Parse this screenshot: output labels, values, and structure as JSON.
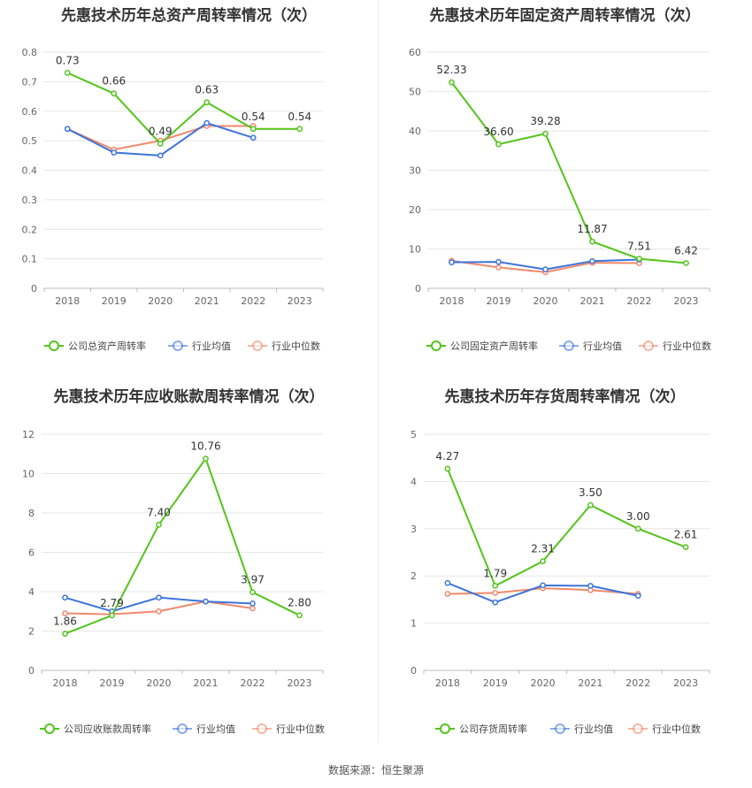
{
  "source_label": "数据来源：恒生聚源",
  "colors": {
    "company": "#52c41a",
    "avg": "#3d74db",
    "median": "#f0896b",
    "grid": "#e6e6e6",
    "axis_text": "#666666"
  },
  "chart_data": [
    {
      "type": "line",
      "title": "先惠技术历年总资产周转率情况（次）",
      "x": [
        "2018",
        "2019",
        "2020",
        "2021",
        "2022",
        "2023"
      ],
      "ylim": [
        0,
        0.8
      ],
      "yticks": [
        "0",
        "0.1",
        "0.2",
        "0.3",
        "0.4",
        "0.5",
        "0.6",
        "0.7",
        "0.8"
      ],
      "series": [
        {
          "name": "公司总资产周转率",
          "values": [
            0.73,
            0.66,
            0.49,
            0.63,
            0.54,
            0.54
          ],
          "labels": [
            "0.73",
            "0.66",
            "0.49",
            "0.63",
            "0.54",
            "0.54"
          ]
        },
        {
          "name": "行业均值",
          "values": [
            0.54,
            0.46,
            0.45,
            0.56,
            0.51,
            null
          ]
        },
        {
          "name": "行业中位数",
          "values": [
            0.54,
            0.47,
            0.5,
            0.55,
            0.55,
            null
          ]
        }
      ]
    },
    {
      "type": "line",
      "title": "先惠技术历年固定资产周转率情况（次）",
      "x": [
        "2018",
        "2019",
        "2020",
        "2021",
        "2022",
        "2023"
      ],
      "ylim": [
        0,
        60
      ],
      "yticks": [
        "0",
        "10",
        "20",
        "30",
        "40",
        "50",
        "60"
      ],
      "series": [
        {
          "name": "公司固定资产周转率",
          "values": [
            52.33,
            36.6,
            39.28,
            11.87,
            7.51,
            6.42
          ],
          "labels": [
            "52.33",
            "36.60",
            "39.28",
            "11.87",
            "7.51",
            "6.42"
          ]
        },
        {
          "name": "行业均值",
          "values": [
            6.6,
            6.7,
            4.8,
            6.9,
            7.3,
            null
          ]
        },
        {
          "name": "行业中位数",
          "values": [
            7.0,
            5.3,
            4.1,
            6.5,
            6.4,
            null
          ]
        }
      ]
    },
    {
      "type": "line",
      "title": "先惠技术历年应收账款周转率情况（次）",
      "x": [
        "2018",
        "2019",
        "2020",
        "2021",
        "2022",
        "2023"
      ],
      "ylim": [
        0,
        12
      ],
      "yticks": [
        "0",
        "2",
        "4",
        "6",
        "8",
        "10",
        "12"
      ],
      "series": [
        {
          "name": "公司应收账款周转率",
          "values": [
            1.86,
            2.79,
            7.4,
            10.76,
            3.97,
            2.8
          ],
          "labels": [
            "1.86",
            "2.79",
            "7.40",
            "10.76",
            "3.97",
            "2.80"
          ]
        },
        {
          "name": "行业均值",
          "values": [
            3.7,
            3.0,
            3.7,
            3.5,
            3.4,
            null
          ]
        },
        {
          "name": "行业中位数",
          "values": [
            2.9,
            2.85,
            3.0,
            3.5,
            3.15,
            null
          ]
        }
      ]
    },
    {
      "type": "line",
      "title": "先惠技术历年存货周转率情况（次）",
      "x": [
        "2018",
        "2019",
        "2020",
        "2021",
        "2022",
        "2023"
      ],
      "ylim": [
        0,
        5
      ],
      "yticks": [
        "0",
        "1",
        "2",
        "3",
        "4",
        "5"
      ],
      "series": [
        {
          "name": "公司存货周转率",
          "values": [
            4.27,
            1.79,
            2.31,
            3.5,
            3.0,
            2.61
          ],
          "labels": [
            "4.27",
            "1.79",
            "2.31",
            "3.50",
            "3.00",
            "2.61"
          ]
        },
        {
          "name": "行业均值",
          "values": [
            1.85,
            1.44,
            1.8,
            1.79,
            1.58,
            null
          ]
        },
        {
          "name": "行业中位数",
          "values": [
            1.62,
            1.64,
            1.74,
            1.7,
            1.62,
            null
          ]
        }
      ]
    }
  ]
}
